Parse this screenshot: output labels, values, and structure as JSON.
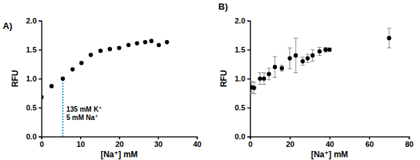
{
  "chart_data": [
    {
      "type": "scatter",
      "title": "A)",
      "x_label": "[Na⁺] mM",
      "y_label": "RFU",
      "x": [
        0,
        2.6,
        5.5,
        8,
        10.3,
        12.7,
        15.2,
        17.6,
        20,
        22.4,
        24.6,
        26.7,
        28.3,
        30.2,
        32.3
      ],
      "series": [
        {
          "color": "#000000",
          "marker": "circle",
          "values": [
            0.68,
            0.87,
            1.0,
            1.16,
            1.27,
            1.41,
            1.48,
            1.51,
            1.53,
            1.58,
            1.61,
            1.63,
            1.65,
            1.58,
            1.63
          ]
        }
      ],
      "xlim": [
        0,
        40
      ],
      "xticks": [
        0,
        10,
        20,
        30,
        40
      ],
      "ylim": [
        0,
        2.0
      ],
      "yticks": [
        {
          "value": 0,
          "label": "0.0"
        },
        {
          "value": 0.5,
          "label": "0.5"
        },
        {
          "value": 1.0,
          "label": "1.0"
        },
        {
          "value": 1.5,
          "label": "1.5"
        },
        {
          "value": 2.0,
          "label": "2.0"
        }
      ],
      "annotations": [
        {
          "text": [
            "135 mM K⁺",
            "5 mM Na⁺"
          ],
          "x": 5.5,
          "y": 1.0,
          "color": "#1f9bd7",
          "line_style": "dotted"
        }
      ]
    },
    {
      "type": "scatter",
      "title": "B)",
      "x_label": "[Na⁺] mM",
      "y_label": "RFU",
      "x": [
        0.8,
        2,
        5,
        7,
        9.5,
        12.5,
        16,
        20,
        23,
        26.5,
        29,
        31.5,
        35,
        38,
        40,
        70
      ],
      "series": [
        {
          "color": "#000000",
          "marker": "circle",
          "values": [
            0.85,
            0.84,
            1.0,
            1.0,
            1.08,
            1.2,
            1.18,
            1.35,
            1.4,
            1.3,
            1.35,
            1.4,
            1.47,
            1.5,
            1.5,
            1.7
          ],
          "errors": [
            0.1,
            0.1,
            0.1,
            0.1,
            0.1,
            0.18,
            0.05,
            0.18,
            0.3,
            0.07,
            0.07,
            0.1,
            0.07,
            0.04,
            0.03,
            0.17
          ]
        }
      ],
      "xlim": [
        0,
        80
      ],
      "xticks": [
        0,
        20,
        40,
        60,
        80
      ],
      "ylim": [
        0,
        2.0
      ],
      "yticks": [
        {
          "value": 0,
          "label": "0.0"
        },
        {
          "value": 0.5,
          "label": "0.5"
        },
        {
          "value": 1.0,
          "label": "1.0"
        },
        {
          "value": 1.5,
          "label": "1.5"
        },
        {
          "value": 2.0,
          "label": "2.0"
        }
      ]
    }
  ]
}
